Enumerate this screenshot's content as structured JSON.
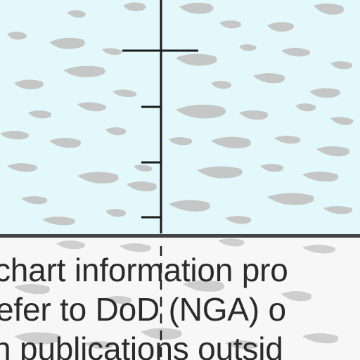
{
  "chart": {
    "note_lines": [
      "chart information pro",
      "efer to DoD (NGA) o",
      "n publications outsid"
    ]
  },
  "colors": {
    "water": "#e3f8fb",
    "paper": "#f7f7f7",
    "ink": "#2b2b2b",
    "texture": "#c2c2c2"
  }
}
